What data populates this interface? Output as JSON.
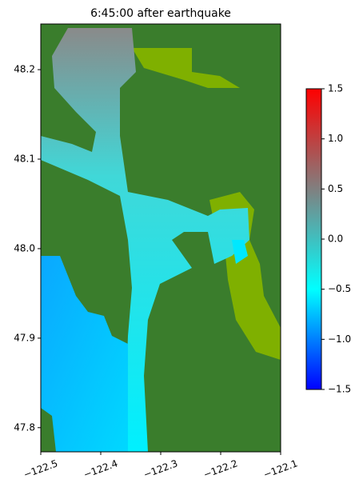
{
  "chart_data": {
    "type": "heatmap",
    "title": "6:45:00 after earthquake",
    "xlim": [
      -122.5,
      -122.1
    ],
    "xticks": [
      {
        "value": -122.5,
        "label": "−122.5"
      },
      {
        "value": -122.4,
        "label": "−122.4"
      },
      {
        "value": -122.3,
        "label": "−122.3"
      },
      {
        "value": -122.2,
        "label": "−122.2"
      },
      {
        "value": -122.1,
        "label": "−122.1"
      }
    ],
    "ylim": [
      47.773,
      48.251
    ],
    "yticks": [
      47.8,
      47.9,
      {
        "value": 48.0,
        "label": "48.0"
      },
      48.1,
      48.2
    ],
    "colorbar": {
      "lim": [
        -1.5,
        1.5
      ],
      "colors": [
        "#0000ff",
        "#00ffff",
        "#808080",
        "#ff0000"
      ],
      "ticks": [
        {
          "value": -1.5,
          "label": "−1.5"
        },
        {
          "value": -1.0,
          "label": "−1.0"
        },
        {
          "value": -0.5,
          "label": "−0.5"
        },
        {
          "value": 0.0,
          "label": "0.0"
        },
        {
          "value": 0.5,
          "label": "0.5"
        },
        {
          "value": 1.0,
          "label": "1.0"
        },
        {
          "value": 1.5,
          "label": "1.5"
        }
      ]
    }
  }
}
